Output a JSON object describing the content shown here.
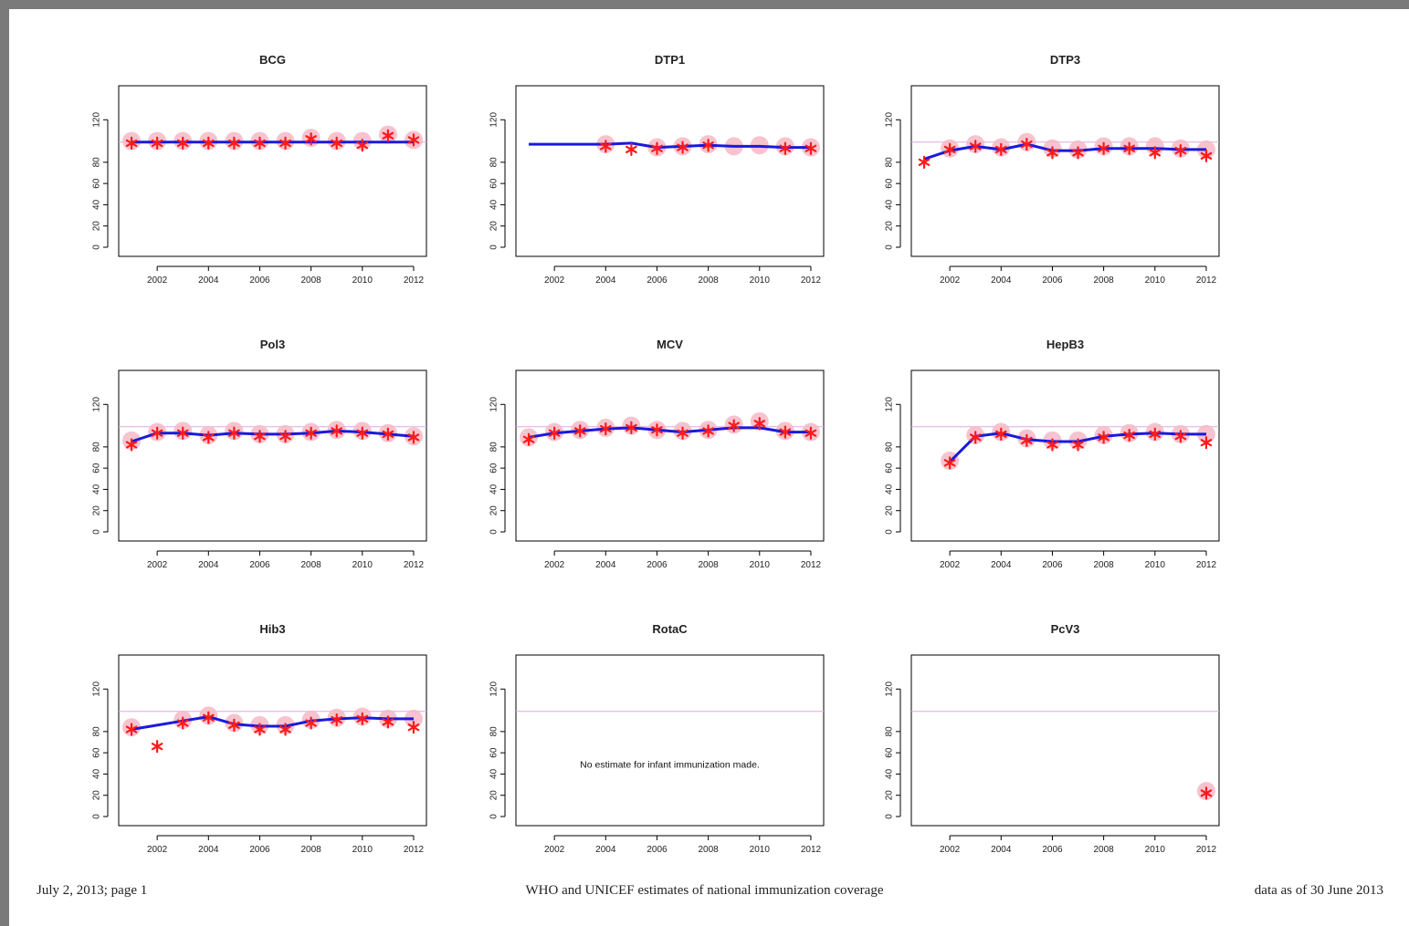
{
  "footer": {
    "left": "July 2, 2013; page 1",
    "center": "WHO and UNICEF estimates of national immunization coverage",
    "right": "data as of 30 June 2013"
  },
  "colors": {
    "estimate_line": "#1a1adb",
    "reported_star": "#ff1a1a",
    "survey_circle": "#f6b9c6",
    "reference_line": "#e0a8e0",
    "frame": "#7a7a7a"
  },
  "chart_data": [
    {
      "type": "line",
      "title": "BCG",
      "x": [
        2001,
        2002,
        2003,
        2004,
        2005,
        2006,
        2007,
        2008,
        2009,
        2010,
        2011,
        2012
      ],
      "x_ticks": [
        2002,
        2004,
        2006,
        2008,
        2010,
        2012
      ],
      "y_ticks": [
        0,
        20,
        40,
        60,
        80,
        120
      ],
      "ylim": [
        0,
        140
      ],
      "reference_line": 99,
      "series": [
        {
          "role": "estimate",
          "style": "blue line",
          "values": [
            99,
            99,
            99,
            99,
            99,
            99,
            99,
            99,
            99,
            99,
            99,
            99
          ]
        },
        {
          "role": "reported",
          "style": "red star",
          "values": [
            98,
            98,
            98,
            98,
            98,
            98,
            98,
            102,
            98,
            96,
            105,
            101
          ]
        },
        {
          "role": "other",
          "style": "pink circle",
          "values": [
            100,
            100,
            100,
            100,
            100,
            100,
            100,
            103,
            100,
            100,
            106,
            101
          ]
        }
      ]
    },
    {
      "type": "line",
      "title": "DTP1",
      "x": [
        2001,
        2002,
        2003,
        2004,
        2005,
        2006,
        2007,
        2008,
        2009,
        2010,
        2011,
        2012
      ],
      "x_ticks": [
        2002,
        2004,
        2006,
        2008,
        2010,
        2012
      ],
      "y_ticks": [
        0,
        20,
        40,
        60,
        80,
        120
      ],
      "ylim": [
        0,
        140
      ],
      "reference_line": null,
      "series": [
        {
          "role": "estimate",
          "style": "blue line",
          "values": [
            97,
            97,
            97,
            97,
            98,
            94,
            95,
            96,
            95,
            95,
            94,
            94
          ]
        },
        {
          "role": "reported",
          "style": "red star",
          "values": [
            null,
            null,
            null,
            95,
            92,
            93,
            94,
            96,
            null,
            null,
            93,
            93
          ]
        },
        {
          "role": "other",
          "style": "pink circle",
          "values": [
            null,
            null,
            null,
            97,
            null,
            94,
            95,
            97,
            95,
            96,
            95,
            94
          ]
        }
      ]
    },
    {
      "type": "line",
      "title": "DTP3",
      "x": [
        2001,
        2002,
        2003,
        2004,
        2005,
        2006,
        2007,
        2008,
        2009,
        2010,
        2011,
        2012
      ],
      "x_ticks": [
        2002,
        2004,
        2006,
        2008,
        2010,
        2012
      ],
      "y_ticks": [
        0,
        20,
        40,
        60,
        80,
        120
      ],
      "ylim": [
        0,
        140
      ],
      "reference_line": 99,
      "series": [
        {
          "role": "estimate",
          "style": "blue line",
          "values": [
            83,
            91,
            95,
            92,
            97,
            91,
            91,
            93,
            93,
            93,
            92,
            92
          ]
        },
        {
          "role": "reported",
          "style": "red star",
          "values": [
            80,
            92,
            95,
            92,
            97,
            89,
            89,
            93,
            93,
            89,
            91,
            86
          ]
        },
        {
          "role": "other",
          "style": "pink circle",
          "values": [
            null,
            93,
            97,
            94,
            99,
            93,
            92,
            95,
            95,
            95,
            93,
            92
          ]
        }
      ]
    },
    {
      "type": "line",
      "title": "Pol3",
      "x": [
        2001,
        2002,
        2003,
        2004,
        2005,
        2006,
        2007,
        2008,
        2009,
        2010,
        2011,
        2012
      ],
      "x_ticks": [
        2002,
        2004,
        2006,
        2008,
        2010,
        2012
      ],
      "y_ticks": [
        0,
        20,
        40,
        60,
        80,
        120
      ],
      "ylim": [
        0,
        140
      ],
      "reference_line": 99,
      "series": [
        {
          "role": "estimate",
          "style": "blue line",
          "values": [
            85,
            93,
            93,
            91,
            93,
            92,
            92,
            93,
            95,
            94,
            92,
            90
          ]
        },
        {
          "role": "reported",
          "style": "red star",
          "values": [
            82,
            93,
            93,
            89,
            93,
            90,
            90,
            93,
            95,
            93,
            92,
            89
          ]
        },
        {
          "role": "other",
          "style": "pink circle",
          "values": [
            86,
            94,
            95,
            91,
            95,
            92,
            92,
            94,
            96,
            95,
            93,
            90
          ]
        }
      ]
    },
    {
      "type": "line",
      "title": "MCV",
      "x": [
        2001,
        2002,
        2003,
        2004,
        2005,
        2006,
        2007,
        2008,
        2009,
        2010,
        2011,
        2012
      ],
      "x_ticks": [
        2002,
        2004,
        2006,
        2008,
        2010,
        2012
      ],
      "y_ticks": [
        0,
        20,
        40,
        60,
        80,
        120
      ],
      "ylim": [
        0,
        140
      ],
      "reference_line": 99,
      "series": [
        {
          "role": "estimate",
          "style": "blue line",
          "values": [
            89,
            93,
            95,
            97,
            98,
            96,
            94,
            96,
            98,
            98,
            94,
            94
          ]
        },
        {
          "role": "reported",
          "style": "red star",
          "values": [
            87,
            93,
            95,
            97,
            98,
            96,
            93,
            95,
            100,
            102,
            94,
            93
          ]
        },
        {
          "role": "other",
          "style": "pink circle",
          "values": [
            89,
            94,
            96,
            98,
            100,
            96,
            95,
            96,
            101,
            104,
            95,
            94
          ]
        }
      ]
    },
    {
      "type": "line",
      "title": "HepB3",
      "x": [
        2001,
        2002,
        2003,
        2004,
        2005,
        2006,
        2007,
        2008,
        2009,
        2010,
        2011,
        2012
      ],
      "x_ticks": [
        2002,
        2004,
        2006,
        2008,
        2010,
        2012
      ],
      "y_ticks": [
        0,
        20,
        40,
        60,
        80,
        120
      ],
      "ylim": [
        0,
        140
      ],
      "reference_line": 99,
      "series": [
        {
          "role": "estimate",
          "style": "blue line",
          "values": [
            null,
            66,
            90,
            93,
            87,
            85,
            85,
            90,
            92,
            93,
            92,
            92
          ]
        },
        {
          "role": "reported",
          "style": "red star",
          "values": [
            null,
            65,
            89,
            92,
            86,
            82,
            82,
            89,
            91,
            92,
            90,
            84
          ]
        },
        {
          "role": "other",
          "style": "pink circle",
          "values": [
            null,
            67,
            91,
            94,
            88,
            86,
            86,
            91,
            93,
            94,
            92,
            92
          ]
        }
      ]
    },
    {
      "type": "line",
      "title": "Hib3",
      "x": [
        2001,
        2002,
        2003,
        2004,
        2005,
        2006,
        2007,
        2008,
        2009,
        2010,
        2011,
        2012
      ],
      "x_ticks": [
        2002,
        2004,
        2006,
        2008,
        2010,
        2012
      ],
      "y_ticks": [
        0,
        20,
        40,
        60,
        80,
        120
      ],
      "ylim": [
        0,
        140
      ],
      "reference_line": 99,
      "series": [
        {
          "role": "estimate",
          "style": "blue line",
          "values": [
            82,
            86,
            90,
            94,
            87,
            85,
            85,
            90,
            92,
            93,
            92,
            92
          ]
        },
        {
          "role": "reported",
          "style": "red star",
          "values": [
            82,
            66,
            88,
            93,
            86,
            82,
            82,
            88,
            91,
            92,
            89,
            84
          ]
        },
        {
          "role": "other",
          "style": "pink circle",
          "values": [
            84,
            null,
            91,
            95,
            88,
            86,
            86,
            91,
            93,
            94,
            92,
            92
          ]
        }
      ]
    },
    {
      "type": "line",
      "title": "RotaC",
      "x": [
        2001,
        2002,
        2003,
        2004,
        2005,
        2006,
        2007,
        2008,
        2009,
        2010,
        2011,
        2012
      ],
      "x_ticks": [
        2002,
        2004,
        2006,
        2008,
        2010,
        2012
      ],
      "y_ticks": [
        0,
        20,
        40,
        60,
        80,
        120
      ],
      "ylim": [
        0,
        140
      ],
      "reference_line": 99,
      "note": "No estimate for infant immunization made.",
      "series": []
    },
    {
      "type": "line",
      "title": "PcV3",
      "x": [
        2001,
        2002,
        2003,
        2004,
        2005,
        2006,
        2007,
        2008,
        2009,
        2010,
        2011,
        2012
      ],
      "x_ticks": [
        2002,
        2004,
        2006,
        2008,
        2010,
        2012
      ],
      "y_ticks": [
        0,
        20,
        40,
        60,
        80,
        120
      ],
      "ylim": [
        0,
        140
      ],
      "reference_line": 99,
      "series": [
        {
          "role": "reported",
          "style": "red star",
          "values": [
            null,
            null,
            null,
            null,
            null,
            null,
            null,
            null,
            null,
            null,
            null,
            22
          ]
        },
        {
          "role": "other",
          "style": "pink circle",
          "values": [
            null,
            null,
            null,
            null,
            null,
            null,
            null,
            null,
            null,
            null,
            null,
            24
          ]
        }
      ]
    }
  ]
}
